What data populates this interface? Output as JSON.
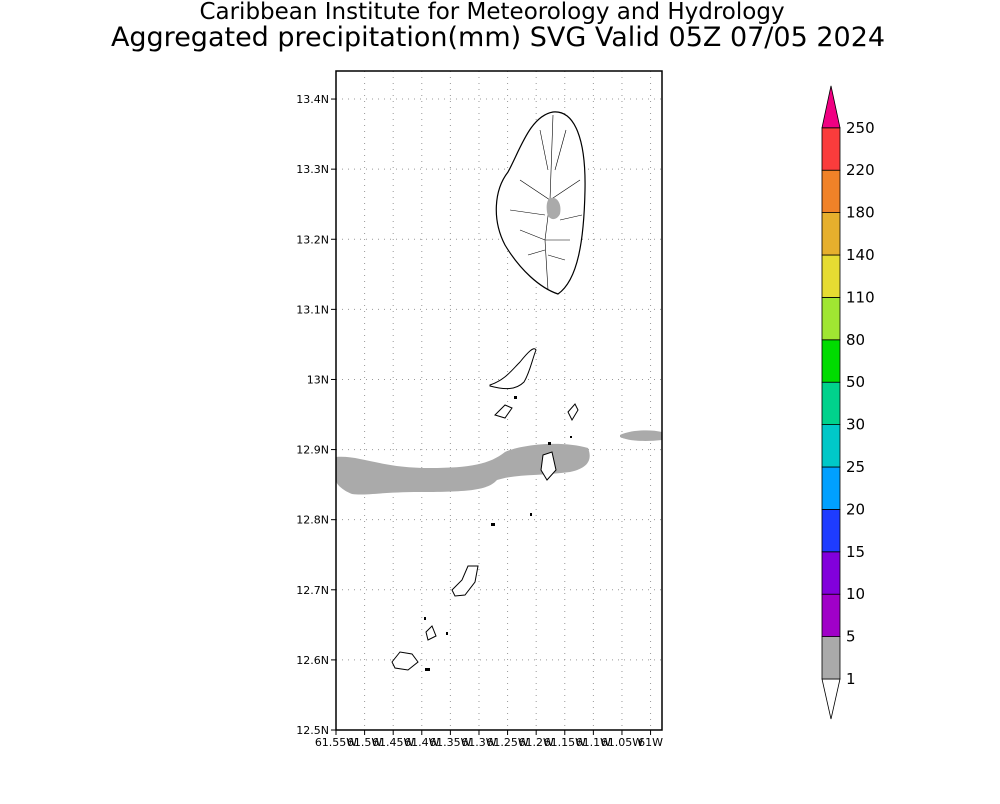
{
  "title": "Caribbean Institute for Meteorology and Hydrology",
  "subtitle": "Aggregated precipitation(mm) SVG Valid 05Z 07/05 2024",
  "map": {
    "xlim": [
      -61.55,
      -60.98
    ],
    "ylim": [
      12.5,
      13.44
    ],
    "grid": true,
    "xticks": [
      {
        "value": -61.55,
        "label": "61.55W"
      },
      {
        "value": -61.5,
        "label": "61.5W"
      },
      {
        "value": -61.45,
        "label": "61.45W"
      },
      {
        "value": -61.4,
        "label": "61.4W"
      },
      {
        "value": -61.35,
        "label": "61.35W"
      },
      {
        "value": -61.3,
        "label": "61.3W"
      },
      {
        "value": -61.25,
        "label": "61.25W"
      },
      {
        "value": -61.2,
        "label": "61.2W"
      },
      {
        "value": -61.15,
        "label": "61.15W"
      },
      {
        "value": -61.1,
        "label": "61.1W"
      },
      {
        "value": -61.05,
        "label": "61.05W"
      },
      {
        "value": -61,
        "label": "61W"
      }
    ],
    "yticks": [
      {
        "value": 12.5,
        "label": "12.5N"
      },
      {
        "value": 12.6,
        "label": "12.6N"
      },
      {
        "value": 12.7,
        "label": "12.7N"
      },
      {
        "value": 12.8,
        "label": "12.8N"
      },
      {
        "value": 12.9,
        "label": "12.9N"
      },
      {
        "value": 13,
        "label": "13N"
      },
      {
        "value": 13.1,
        "label": "13.1N"
      },
      {
        "value": 13.2,
        "label": "13.2N"
      },
      {
        "value": 13.3,
        "label": "13.3N"
      },
      {
        "value": 13.4,
        "label": "13.4N"
      }
    ]
  },
  "colorbar": {
    "levels": [
      1,
      5,
      10,
      15,
      20,
      25,
      30,
      50,
      80,
      110,
      140,
      180,
      220,
      250
    ],
    "colors": [
      "#ffffff",
      "#aaaaaa",
      "#a000c8",
      "#8200dc",
      "#1e3cff",
      "#00a0ff",
      "#00c8c8",
      "#00d28c",
      "#00dc00",
      "#a0e632",
      "#e6dc32",
      "#e6af2d",
      "#f08228",
      "#fa3c3c",
      "#f00082"
    ]
  }
}
